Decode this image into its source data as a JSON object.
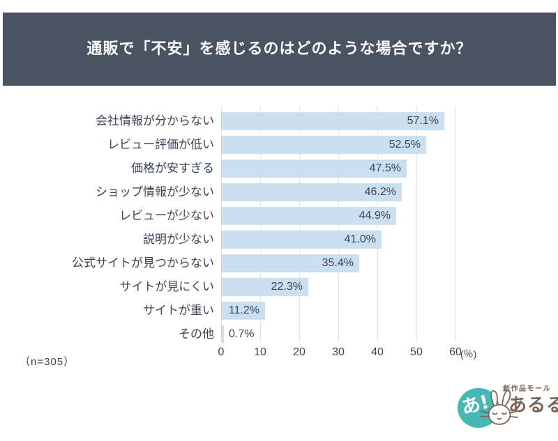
{
  "header": {
    "title": "通販で「不安」を感じるのはどのような場合ですか？",
    "bg_color": "#4b5261",
    "text_color": "#ffffff"
  },
  "chart_data": {
    "type": "bar",
    "orientation": "horizontal",
    "title": "通販で「不安」を感じるのはどのような場合ですか？",
    "categories": [
      "会社情報が分からない",
      "レビュー評価が低い",
      "価格が安すぎる",
      "ショップ情報が少ない",
      "レビューが少ない",
      "説明が少ない",
      "公式サイトが見つからない",
      "サイトが見にくい",
      "サイトが重い",
      "その他"
    ],
    "values": [
      57.1,
      52.5,
      47.5,
      46.2,
      44.9,
      41.0,
      35.4,
      22.3,
      11.2,
      0.7
    ],
    "value_labels": [
      "57.1%",
      "52.5%",
      "47.5%",
      "46.2%",
      "44.9%",
      "41.0%",
      "35.4%",
      "22.3%",
      "11.2%",
      "0.7%"
    ],
    "xlabel": "",
    "ylabel": "",
    "xlim": [
      0,
      60
    ],
    "x_ticks": [
      0,
      10,
      20,
      30,
      40,
      50,
      60
    ],
    "x_unit": "(％)",
    "grid": true,
    "legend": false,
    "bar_color": "#c5ddef",
    "grid_color": "#e4e7ea",
    "label_color": "#3d4457"
  },
  "footnote": {
    "sample_size": "（n=305）"
  },
  "logo": {
    "badge_text": "あ!",
    "tagline": "創作品モール",
    "brand": "あるる",
    "teal_color": "#46b8b4",
    "brown_color": "#7c6353"
  }
}
